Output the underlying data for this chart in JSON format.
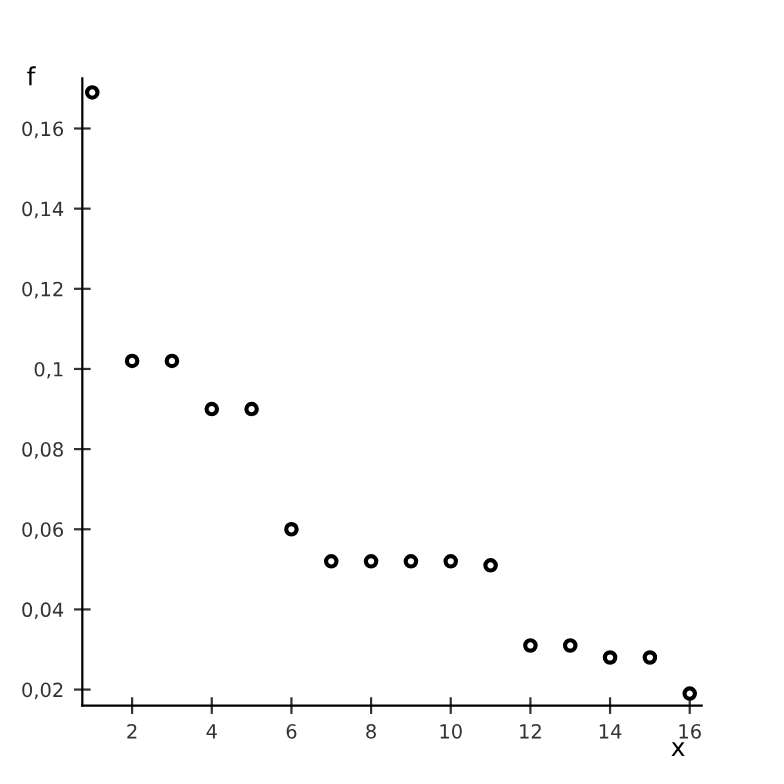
{
  "chart_data": {
    "type": "scatter",
    "xlabel": "x",
    "ylabel": "f",
    "marker": "circle",
    "grid": false,
    "legend": false,
    "x": [
      1,
      2,
      3,
      4,
      5,
      6,
      7,
      8,
      9,
      10,
      11,
      12,
      13,
      14,
      15,
      16
    ],
    "series": [
      {
        "color": "#000000",
        "values": [
          0.169,
          0.102,
          0.102,
          0.09,
          0.09,
          0.06,
          0.052,
          0.052,
          0.052,
          0.052,
          0.051,
          0.031,
          0.031,
          0.028,
          0.028,
          0.019
        ]
      }
    ],
    "xlim": [
      0.75,
      16.3
    ],
    "ylim": [
      0.016,
      0.1725
    ],
    "xticks": [
      2,
      4,
      6,
      8,
      10,
      12,
      14,
      16
    ],
    "yticks": [
      {
        "value": 0.02,
        "label": "0,02"
      },
      {
        "value": 0.04,
        "label": "0,04"
      },
      {
        "value": 0.06,
        "label": "0,06"
      },
      {
        "value": 0.08,
        "label": "0,08"
      },
      {
        "value": 0.1,
        "label": "0,1"
      },
      {
        "value": 0.12,
        "label": "0,12"
      },
      {
        "value": 0.14,
        "label": "0,14"
      },
      {
        "value": 0.16,
        "label": "0,16"
      }
    ]
  }
}
